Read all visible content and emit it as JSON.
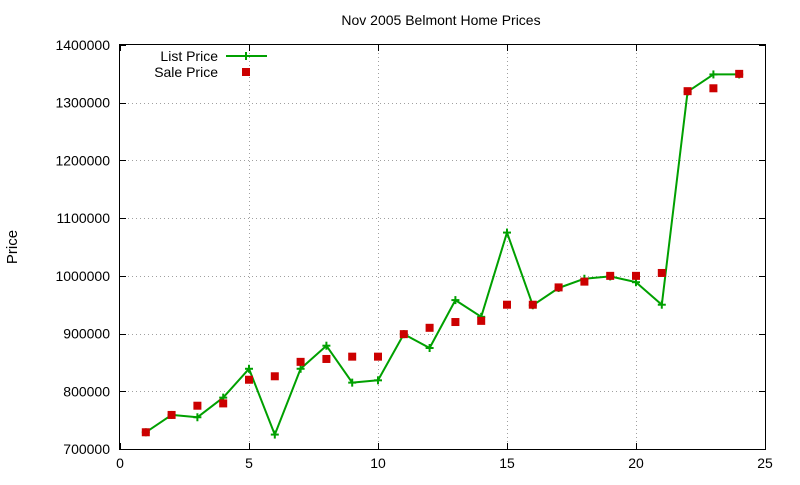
{
  "chart_data": {
    "type": "line",
    "title": "Nov 2005 Belmont Home Prices",
    "xlabel": "",
    "ylabel": "Price",
    "xlim": [
      0,
      25
    ],
    "ylim": [
      700000,
      1400000
    ],
    "x_ticks": [
      0,
      5,
      10,
      15,
      20,
      25
    ],
    "y_ticks": [
      700000,
      800000,
      900000,
      1000000,
      1100000,
      1200000,
      1300000,
      1400000
    ],
    "grid": true,
    "legend_position": "top-left",
    "series": [
      {
        "name": "List Price",
        "style": "line-with-plus-markers",
        "color": "#00a000",
        "x": [
          1,
          2,
          3,
          4,
          5,
          6,
          7,
          8,
          9,
          10,
          11,
          12,
          13,
          14,
          15,
          16,
          17,
          18,
          19,
          20,
          21,
          22,
          23,
          24
        ],
        "y": [
          729000,
          759000,
          755000,
          789000,
          839000,
          725000,
          839000,
          879000,
          815000,
          819000,
          899000,
          875000,
          958000,
          929000,
          1075000,
          949000,
          979000,
          995000,
          999000,
          989000,
          950000,
          1319000,
          1349000,
          1349000
        ]
      },
      {
        "name": "Sale Price",
        "style": "square-markers",
        "color": "#cc0000",
        "x": [
          1,
          2,
          3,
          4,
          5,
          6,
          7,
          8,
          9,
          10,
          11,
          12,
          13,
          14,
          15,
          16,
          17,
          18,
          19,
          20,
          21,
          22,
          23,
          24
        ],
        "y": [
          729000,
          759000,
          775000,
          779000,
          820000,
          826000,
          851000,
          856000,
          860000,
          860000,
          899000,
          910000,
          920000,
          922000,
          950000,
          950000,
          980000,
          990000,
          1000000,
          1000000,
          1005000,
          1320000,
          1325000,
          1350000
        ]
      }
    ]
  }
}
